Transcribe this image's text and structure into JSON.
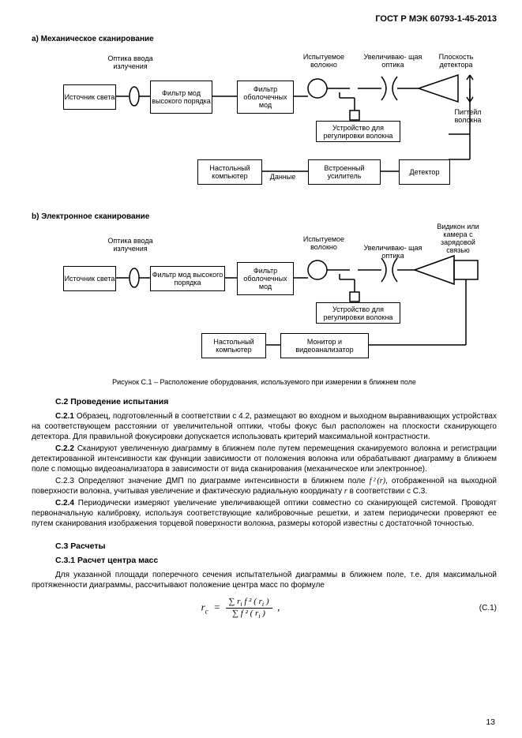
{
  "header": "ГОСТ Р МЭК 60793-1-45-2013",
  "diagA": {
    "title": "a) Механическое сканирование",
    "l_input_optics": "Оптика ввода\nизлучения",
    "l_test_fiber": "Испытуемое\nволокно",
    "l_mag_optics": "Увеличиваю-\nщая оптика",
    "l_det_plane": "Плоскость\nдетектора",
    "l_pigtail": "Пигтейл\nволокна",
    "l_data": "Данные",
    "b_source": "Источник\nсвета",
    "b_mode_filter": "Фильтр мод\nвысокого\nпорядка",
    "b_clad_filter": "Фильтр\nоболочечных\nмод",
    "b_align": "Устройство для\nрегулировки волокна",
    "b_pc": "Настольный\nкомпьютер",
    "b_amp": "Встроенный\nусилитель",
    "b_detector": "Детектор"
  },
  "diagB": {
    "title": "b) Электронное сканирование",
    "l_input_optics": "Оптика ввода\nизлучения",
    "l_test_fiber": "Испытуемое\nволокно",
    "l_mag_optics": "Увеличиваю-\nщая оптика",
    "l_vidicon": "Видикон или\nкамера с\nзарядовой\nсвязью",
    "b_source": "Источник\nсвета",
    "b_mode_filter": "Фильтр мод\nвысокого порядка",
    "b_clad_filter": "Фильтр\nоболочечных\nмод",
    "b_align": "Устройство для\nрегулировки волокна",
    "b_pc": "Настольный\nкомпьютер",
    "b_monitor": "Монитор и\nвидеоанализатор"
  },
  "caption": "Рисунок C.1 – Расположение оборудования, используемого при  измерении в ближнем поле",
  "c2_title": "С.2 Проведение испытания",
  "c21": "С.2.1 Образец, подготовленный в соответствии с 4.2, размещают во входном и выходном выравнивающих устройствах на соответствующем расстоянии от увеличительной оптики,  чтобы фокус был расположен на плоскости сканирующего детектора. Для правильной фокусировки допускается использовать критерий максимальной контрастности.",
  "c22": "С.2.2 Сканируют увеличенную диаграмму в ближнем поле путем перемещения сканируемого волокна и регистрации детектированной интенсивности как функции зависимости от положения волокна или обрабатывают диаграмму в ближнем поле с помощью видеоанализатора в зависимости от вида сканирования (механическое или электронное).",
  "c23a": "С.2.3 Определяют значение ДМП по диаграмме интенсивности в ближнем поле ",
  "c23b": ", отображенной на выходной поверхности волокна, учитывая увеличение и фактическую радиальную координату ",
  "c23c": " в соответствии с С.3.",
  "c24": "С.2.4 Периодически измеряют увеличение увеличивающей оптики совместно со сканирующей системой. Проводят первоначальную калибровку, используя соответствующие калибровочные решетки, и затем периодически проверяют ее путем сканирования изображения торцевой поверхности волокна, размеры которой известны с достаточной точностью.",
  "c3_title": "С.3 Расчеты",
  "c31_title": "С.3.1 Расчет центра масс",
  "c31": "Для указанной площади поперечного сечения испытательной диаграммы в ближнем поле, т.е. для максимальной протяженности диаграммы, рассчитывают положение центра масс по формуле",
  "eq_lhs": "r",
  "eq_lhs_sub": "c",
  "eq_num_a": "∑ r",
  "eq_num_b": " f ² ( r",
  "eq_num_c": " )",
  "eq_den_a": "∑ f ² ( r",
  "eq_den_b": " )",
  "eqnum": "(C.1)",
  "pageno": "13"
}
